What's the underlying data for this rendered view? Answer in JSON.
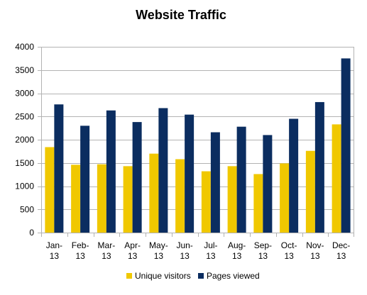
{
  "chart_data": {
    "type": "bar",
    "title": "Website Traffic",
    "xlabel": "",
    "ylabel": "",
    "categories": [
      "Jan-13",
      "Feb-13",
      "Mar-13",
      "Apr-13",
      "May-13",
      "Jun-13",
      "Jul-13",
      "Aug-13",
      "Sep-13",
      "Oct-13",
      "Nov-13",
      "Dec-13"
    ],
    "series": [
      {
        "name": "Unique visitors",
        "color": "#f0c800",
        "values": [
          1840,
          1460,
          1470,
          1430,
          1700,
          1580,
          1320,
          1430,
          1260,
          1490,
          1760,
          2330
        ]
      },
      {
        "name": "Pages viewed",
        "color": "#0b2d60",
        "values": [
          2760,
          2300,
          2630,
          2380,
          2680,
          2540,
          2160,
          2280,
          2100,
          2450,
          2810,
          3750
        ]
      }
    ],
    "ylim": [
      0,
      4000
    ],
    "yticks": [
      0,
      500,
      1000,
      1500,
      2000,
      2500,
      3000,
      3500,
      4000
    ],
    "grid": true,
    "legend": "bottom",
    "gridColor": "#b3b3b3",
    "axisColor": "#b3b3b3"
  }
}
